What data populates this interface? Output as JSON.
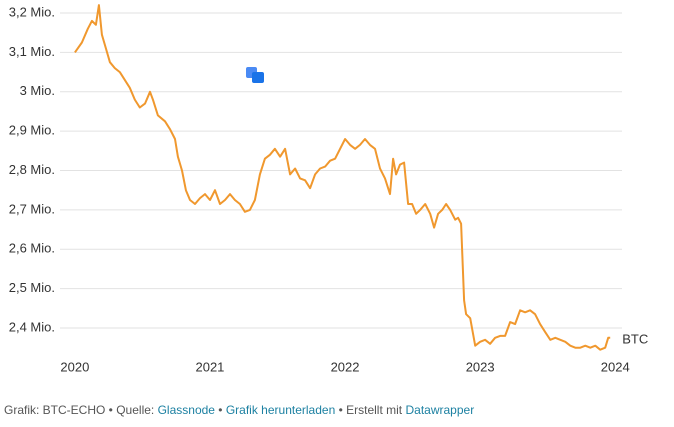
{
  "chart_data": {
    "type": "line",
    "series": [
      {
        "name": "BTC",
        "color": "#f0982e",
        "x": [
          2020.0,
          2020.052,
          2020.096,
          2020.126,
          2020.156,
          2020.178,
          2020.2,
          2020.23,
          2020.259,
          2020.296,
          2020.333,
          2020.37,
          2020.407,
          2020.444,
          2020.481,
          2020.519,
          2020.556,
          2020.578,
          2020.615,
          2020.667,
          2020.704,
          2020.741,
          2020.763,
          2020.793,
          2020.822,
          2020.852,
          2020.889,
          2020.926,
          2020.963,
          2021.0,
          2021.037,
          2021.074,
          2021.111,
          2021.148,
          2021.185,
          2021.222,
          2021.259,
          2021.296,
          2021.333,
          2021.37,
          2021.407,
          2021.444,
          2021.481,
          2021.519,
          2021.556,
          2021.593,
          2021.63,
          2021.667,
          2021.704,
          2021.741,
          2021.778,
          2021.815,
          2021.852,
          2021.889,
          2021.926,
          2021.963,
          2022.0,
          2022.037,
          2022.074,
          2022.111,
          2022.148,
          2022.185,
          2022.222,
          2022.259,
          2022.296,
          2022.333,
          2022.356,
          2022.378,
          2022.407,
          2022.437,
          2022.467,
          2022.496,
          2022.526,
          2022.556,
          2022.593,
          2022.63,
          2022.659,
          2022.689,
          2022.719,
          2022.748,
          2022.778,
          2022.815,
          2022.837,
          2022.859,
          2022.881,
          2022.896,
          2022.926,
          2022.963,
          2023.0,
          2023.037,
          2023.074,
          2023.111,
          2023.148,
          2023.185,
          2023.222,
          2023.259,
          2023.296,
          2023.333,
          2023.37,
          2023.407,
          2023.444,
          2023.481,
          2023.519,
          2023.556,
          2023.593,
          2023.63,
          2023.667,
          2023.704,
          2023.741,
          2023.778,
          2023.815,
          2023.852,
          2023.889,
          2023.926,
          2023.948,
          2023.963
        ],
        "values": [
          3100000,
          3125000,
          3160000,
          3180000,
          3170000,
          3220000,
          3145000,
          3110000,
          3075000,
          3060000,
          3050000,
          3030000,
          3010000,
          2980000,
          2960000,
          2970000,
          3000000,
          2980000,
          2940000,
          2925000,
          2905000,
          2880000,
          2835000,
          2800000,
          2750000,
          2725000,
          2715000,
          2730000,
          2740000,
          2725000,
          2750000,
          2715000,
          2725000,
          2740000,
          2725000,
          2715000,
          2695000,
          2700000,
          2725000,
          2790000,
          2830000,
          2840000,
          2855000,
          2835000,
          2855000,
          2790000,
          2805000,
          2780000,
          2775000,
          2755000,
          2790000,
          2805000,
          2810000,
          2825000,
          2830000,
          2855000,
          2880000,
          2865000,
          2855000,
          2865000,
          2880000,
          2865000,
          2855000,
          2805000,
          2780000,
          2740000,
          2830000,
          2790000,
          2815000,
          2820000,
          2715000,
          2715000,
          2690000,
          2700000,
          2715000,
          2690000,
          2655000,
          2690000,
          2700000,
          2715000,
          2700000,
          2675000,
          2680000,
          2665000,
          2470000,
          2435000,
          2425000,
          2355000,
          2365000,
          2370000,
          2360000,
          2375000,
          2380000,
          2380000,
          2415000,
          2410000,
          2445000,
          2440000,
          2445000,
          2435000,
          2410000,
          2390000,
          2370000,
          2375000,
          2370000,
          2365000,
          2355000,
          2350000,
          2350000,
          2355000,
          2350000,
          2355000,
          2345000,
          2350000,
          2375000,
          2375000
        ]
      }
    ],
    "xlim": [
      2019.89,
      2024.05
    ],
    "xticks": [
      2020,
      2021,
      2022,
      2023,
      2024
    ],
    "ylim": [
      2345000,
      3230000
    ],
    "yticks": [
      {
        "value": 2400000,
        "label": "2,4 Mio."
      },
      {
        "value": 2500000,
        "label": "2,5 Mio."
      },
      {
        "value": 2600000,
        "label": "2,6 Mio."
      },
      {
        "value": 2700000,
        "label": "2,7 Mio."
      },
      {
        "value": 2800000,
        "label": "2,8 Mio."
      },
      {
        "value": 2900000,
        "label": "2,9 Mio."
      },
      {
        "value": 3000000,
        "label": "3 Mio."
      },
      {
        "value": 3100000,
        "label": "3,1 Mio."
      },
      {
        "value": 3200000,
        "label": "3,2 Mio."
      }
    ],
    "grid": true
  },
  "footer": {
    "credit": "Grafik: BTC-ECHO",
    "source_label": "Quelle:",
    "source": "Glassnode",
    "download": "Grafik herunterladen",
    "made_with": "Erstellt mit",
    "tool": "Datawrapper"
  }
}
